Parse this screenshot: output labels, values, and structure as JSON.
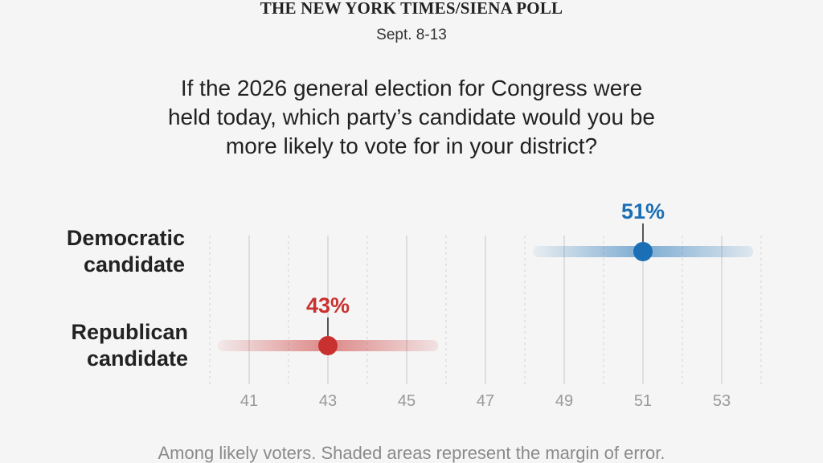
{
  "header": {
    "masthead": "THE NEW YORK TIMES/SIENA POLL",
    "dates": "Sept. 8-13"
  },
  "question_lines": [
    "If the 2026 general election for Congress were",
    "held today, which party’s candidate would you be",
    "more likely to vote for in your district?"
  ],
  "footnote": "Among likely voters. Shaded areas represent the margin of error.",
  "chart_data": {
    "type": "scatter",
    "title": "",
    "xlabel": "",
    "ylabel": "",
    "xlim": [
      40,
      55
    ],
    "x_ticks": [
      41,
      43,
      45,
      47,
      49,
      51,
      53
    ],
    "grid": true,
    "series": [
      {
        "name": "Democratic candidate",
        "label_lines": [
          "Democratic",
          "candidate"
        ],
        "value": 51,
        "value_label": "51%",
        "moe_range": [
          48.2,
          53.8
        ],
        "color": "#1a6fb5"
      },
      {
        "name": "Republican candidate",
        "label_lines": [
          "Republican",
          "candidate"
        ],
        "value": 43,
        "value_label": "43%",
        "moe_range": [
          40.2,
          45.8
        ],
        "color": "#c8312f"
      }
    ]
  }
}
